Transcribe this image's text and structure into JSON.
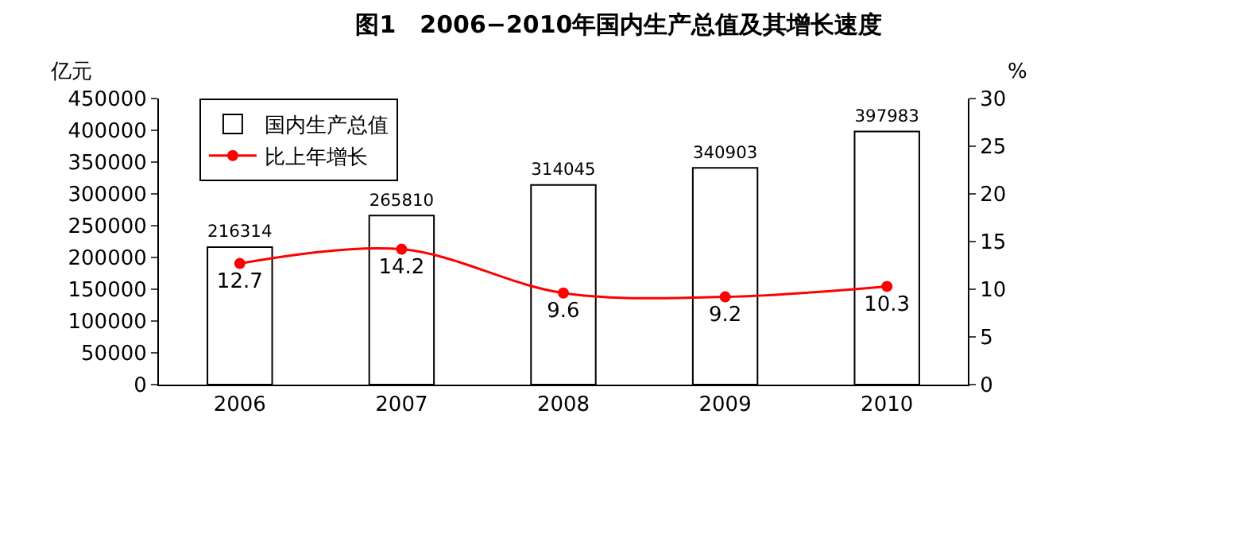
{
  "chart_data": {
    "type": "bar",
    "title": "图1　2006−2010年国内生产总值及其增长速度",
    "ylabel": "亿元",
    "y2label": "%",
    "categories": [
      "2006",
      "2007",
      "2008",
      "2009",
      "2010"
    ],
    "series": [
      {
        "name": "国内生产总值",
        "color": "#ffffff",
        "values": [
          216314,
          265810,
          314045,
          340903,
          397983
        ]
      },
      {
        "name": "比上年增长",
        "type": "line",
        "axis": "y2",
        "color": "#ff0000",
        "marker": "circle",
        "values": [
          12.7,
          14.2,
          9.6,
          9.2,
          10.3
        ]
      }
    ],
    "ylim": [
      0,
      450000
    ],
    "yticks": [
      0,
      50000,
      100000,
      150000,
      200000,
      250000,
      300000,
      350000,
      400000,
      450000
    ],
    "y2lim": [
      0,
      30
    ],
    "y2ticks": [
      0,
      5,
      10,
      15,
      20,
      25,
      30
    ],
    "data_labels": true,
    "grid": false,
    "legend": "top left"
  }
}
